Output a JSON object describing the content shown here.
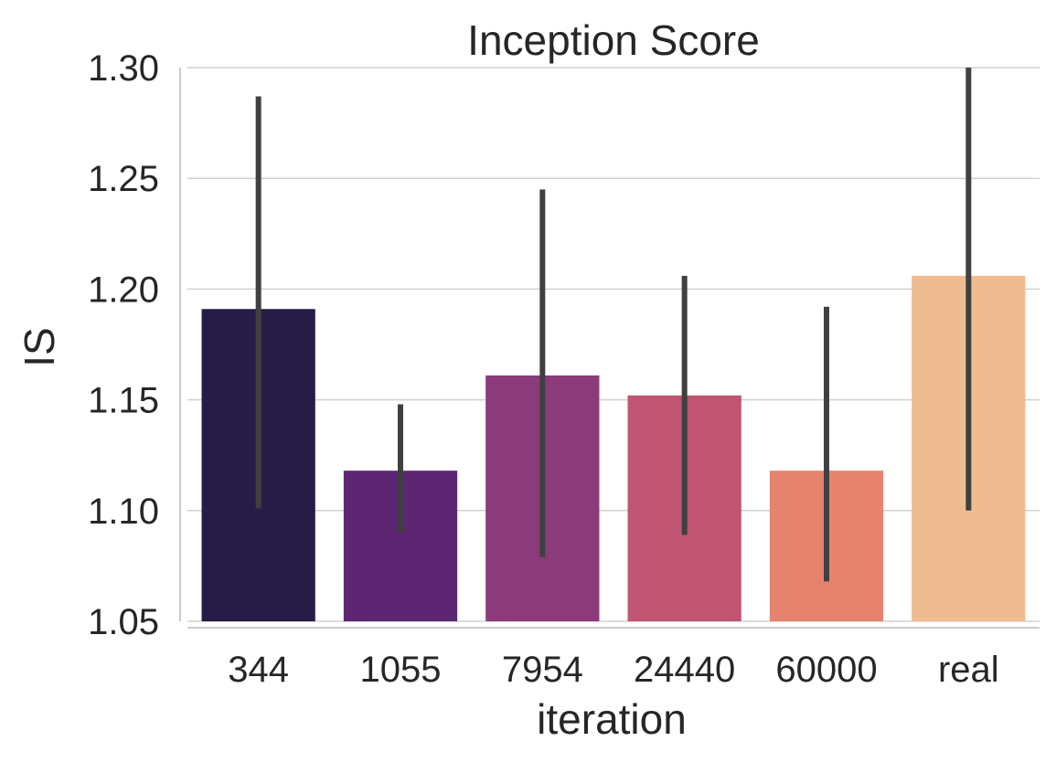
{
  "chart_data": {
    "type": "bar",
    "title": "Inception Score",
    "xlabel": "iteration",
    "ylabel": "IS",
    "categories": [
      "344",
      "1055",
      "7954",
      "24440",
      "60000",
      "real"
    ],
    "values": [
      1.191,
      1.118,
      1.161,
      1.152,
      1.118,
      1.206
    ],
    "error_low": [
      1.101,
      1.09,
      1.079,
      1.089,
      1.068,
      1.1
    ],
    "error_high": [
      1.287,
      1.148,
      1.245,
      1.206,
      1.192,
      1.3
    ],
    "ylim": [
      1.05,
      1.3
    ],
    "yticks": [
      "1.05",
      "1.10",
      "1.15",
      "1.20",
      "1.25",
      "1.30"
    ],
    "ytick_values": [
      1.05,
      1.1,
      1.15,
      1.2,
      1.25,
      1.3
    ],
    "colors": [
      "#271b47",
      "#5c2672",
      "#8b3a7a",
      "#bf5573",
      "#e6836f",
      "#efbc91"
    ],
    "errorbar_color": "#404040",
    "grid": "horizontal"
  }
}
